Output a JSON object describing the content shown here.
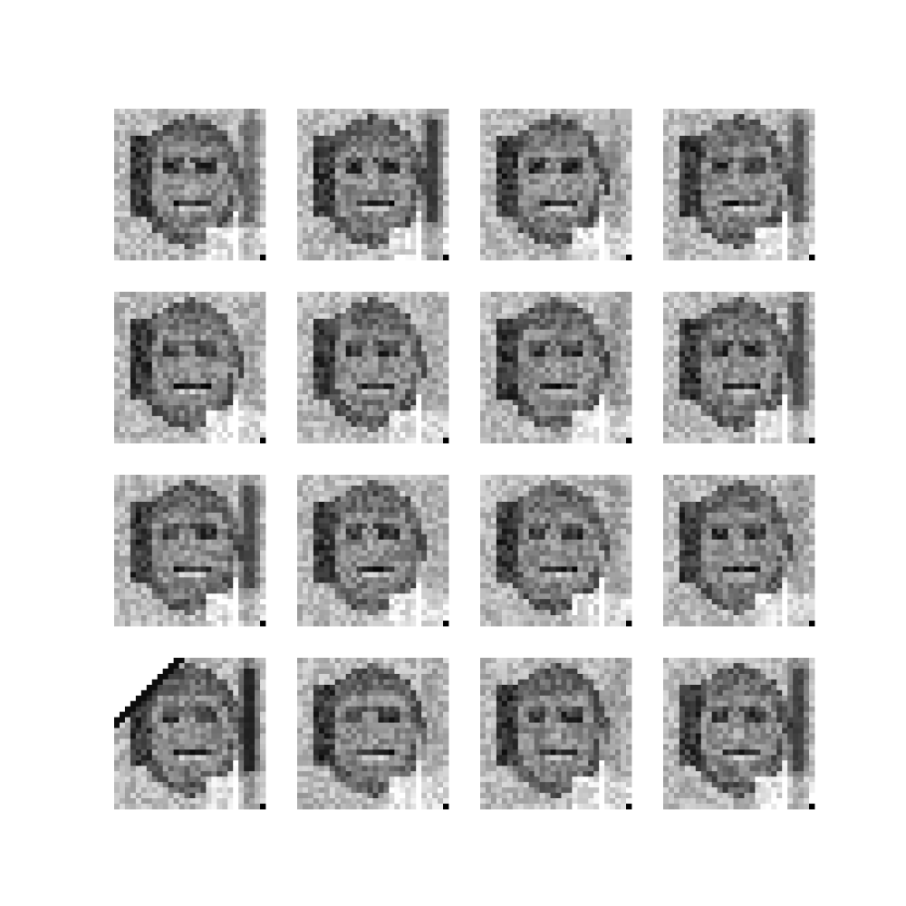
{
  "figure": {
    "grid_rows": 4,
    "grid_cols": 4,
    "colormap": "grayscale",
    "background_color": "#ffffff",
    "panels": [
      {
        "row": 0,
        "col": 0,
        "variant": "dark-stripe-right",
        "stripe_strength": 0.55
      },
      {
        "row": 0,
        "col": 1,
        "variant": "dark-stripe-right",
        "stripe_strength": 0.85
      },
      {
        "row": 0,
        "col": 2,
        "variant": "plain",
        "stripe_strength": 0.2
      },
      {
        "row": 0,
        "col": 3,
        "variant": "dark-stripe-right",
        "stripe_strength": 0.7
      },
      {
        "row": 1,
        "col": 0,
        "variant": "plain",
        "stripe_strength": 0.1
      },
      {
        "row": 1,
        "col": 1,
        "variant": "plain",
        "stripe_strength": 0.15
      },
      {
        "row": 1,
        "col": 2,
        "variant": "plain",
        "stripe_strength": 0.25
      },
      {
        "row": 1,
        "col": 3,
        "variant": "dark-stripe-right",
        "stripe_strength": 0.75
      },
      {
        "row": 2,
        "col": 0,
        "variant": "dark-stripe-right",
        "stripe_strength": 0.75
      },
      {
        "row": 2,
        "col": 1,
        "variant": "plain",
        "stripe_strength": 0.1
      },
      {
        "row": 2,
        "col": 2,
        "variant": "plain",
        "stripe_strength": 0.2
      },
      {
        "row": 2,
        "col": 3,
        "variant": "plain",
        "stripe_strength": 0.25
      },
      {
        "row": 3,
        "col": 0,
        "variant": "corner-cut-dark-stripe",
        "stripe_strength": 1.0
      },
      {
        "row": 3,
        "col": 1,
        "variant": "plain",
        "stripe_strength": 0.15
      },
      {
        "row": 3,
        "col": 2,
        "variant": "plain",
        "stripe_strength": 0.2
      },
      {
        "row": 3,
        "col": 3,
        "variant": "dark-stripe-right",
        "stripe_strength": 0.8
      }
    ]
  }
}
